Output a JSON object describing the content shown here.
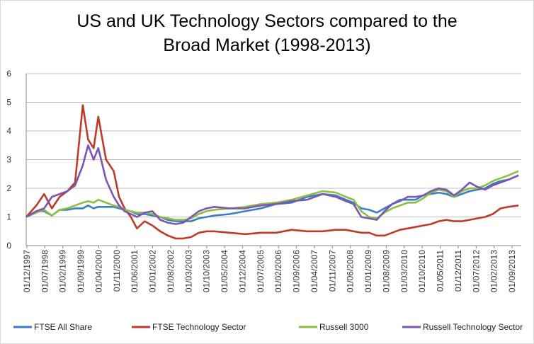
{
  "chart_data": {
    "type": "line",
    "title_line1": "US and UK Technology Sectors compared to the",
    "title_line2": "Broad Market (1998-2013)",
    "xlabel": "",
    "ylabel": "",
    "ylim": [
      0,
      6
    ],
    "yticks": [
      0,
      1,
      2,
      3,
      4,
      5,
      6
    ],
    "grid": true,
    "legend_position": "bottom",
    "x_tick_labels": [
      "01/12/1997",
      "01/07/1998",
      "01/02/1999",
      "01/09/1999",
      "01/04/2000",
      "01/11/2000",
      "01/06/2001",
      "01/01/2002",
      "01/08/2002",
      "01/03/2003",
      "01/10/2003",
      "01/05/2004",
      "01/12/2004",
      "01/07/2005",
      "01/02/2006",
      "01/09/2006",
      "01/04/2007",
      "01/11/2007",
      "01/06/2008",
      "01/01/2009",
      "01/08/2009",
      "01/03/2010",
      "01/10/2010",
      "01/05/2011",
      "01/12/2011",
      "01/07/2012",
      "01/02/2013",
      "01/09/2013"
    ],
    "x": [
      1997.92,
      1998.25,
      1998.5,
      1998.75,
      1999.0,
      1999.25,
      1999.5,
      1999.75,
      1999.92,
      2000.1,
      2000.25,
      2000.5,
      2000.75,
      2000.92,
      2001.1,
      2001.3,
      2001.5,
      2001.75,
      2002.0,
      2002.25,
      2002.5,
      2002.75,
      2003.0,
      2003.25,
      2003.5,
      2003.75,
      2004.0,
      2004.5,
      2005.0,
      2005.5,
      2006.0,
      2006.5,
      2007.0,
      2007.5,
      2007.92,
      2008.25,
      2008.5,
      2008.75,
      2009.0,
      2009.25,
      2009.5,
      2009.75,
      2010.0,
      2010.25,
      2010.5,
      2010.75,
      2011.0,
      2011.25,
      2011.5,
      2011.75,
      2012.0,
      2012.25,
      2012.5,
      2012.75,
      2013.0,
      2013.25,
      2013.5,
      2013.83
    ],
    "series": [
      {
        "name": "FTSE All Share",
        "color": "#3a7dc9",
        "values": [
          1.0,
          1.2,
          1.2,
          1.05,
          1.25,
          1.25,
          1.3,
          1.3,
          1.4,
          1.3,
          1.35,
          1.35,
          1.35,
          1.3,
          1.25,
          1.2,
          1.1,
          1.1,
          1.05,
          1.0,
          0.9,
          0.85,
          0.85,
          0.85,
          0.95,
          1.0,
          1.05,
          1.1,
          1.2,
          1.3,
          1.45,
          1.5,
          1.7,
          1.8,
          1.75,
          1.6,
          1.5,
          1.3,
          1.25,
          1.15,
          1.3,
          1.45,
          1.6,
          1.6,
          1.6,
          1.75,
          1.8,
          1.85,
          1.8,
          1.7,
          1.8,
          1.9,
          1.95,
          2.0,
          2.15,
          2.25,
          2.3,
          2.45
        ]
      },
      {
        "name": "FTSE Technology Sector",
        "color": "#c0392b",
        "values": [
          1.0,
          1.4,
          1.8,
          1.3,
          1.7,
          1.9,
          2.2,
          4.9,
          3.7,
          3.4,
          4.5,
          3.0,
          2.6,
          1.7,
          1.3,
          1.0,
          0.6,
          0.85,
          0.7,
          0.5,
          0.35,
          0.25,
          0.25,
          0.3,
          0.45,
          0.5,
          0.5,
          0.45,
          0.4,
          0.45,
          0.45,
          0.55,
          0.5,
          0.5,
          0.55,
          0.55,
          0.5,
          0.45,
          0.45,
          0.35,
          0.35,
          0.45,
          0.55,
          0.6,
          0.65,
          0.7,
          0.75,
          0.85,
          0.9,
          0.85,
          0.85,
          0.9,
          0.95,
          1.0,
          1.1,
          1.3,
          1.35,
          1.4
        ]
      },
      {
        "name": "Russell 3000",
        "color": "#8cbf3f",
        "values": [
          1.0,
          1.15,
          1.25,
          1.05,
          1.25,
          1.3,
          1.4,
          1.5,
          1.55,
          1.5,
          1.6,
          1.5,
          1.4,
          1.35,
          1.25,
          1.2,
          1.15,
          1.15,
          1.1,
          1.0,
          0.95,
          0.9,
          0.9,
          0.95,
          1.1,
          1.2,
          1.25,
          1.3,
          1.35,
          1.45,
          1.5,
          1.6,
          1.75,
          1.9,
          1.85,
          1.7,
          1.6,
          1.2,
          1.0,
          0.95,
          1.15,
          1.3,
          1.4,
          1.5,
          1.5,
          1.65,
          1.85,
          1.95,
          1.9,
          1.7,
          1.9,
          2.0,
          2.0,
          2.1,
          2.25,
          2.35,
          2.45,
          2.6
        ]
      },
      {
        "name": "Russell Technology Sector",
        "color": "#7d55b2",
        "values": [
          1.0,
          1.2,
          1.3,
          1.7,
          1.8,
          1.9,
          2.1,
          2.8,
          3.5,
          3.0,
          3.4,
          2.3,
          1.7,
          1.4,
          1.2,
          1.1,
          1.0,
          1.15,
          1.2,
          0.9,
          0.8,
          0.75,
          0.8,
          1.0,
          1.2,
          1.3,
          1.35,
          1.3,
          1.3,
          1.4,
          1.45,
          1.55,
          1.6,
          1.8,
          1.7,
          1.55,
          1.45,
          1.0,
          0.95,
          0.9,
          1.2,
          1.45,
          1.55,
          1.7,
          1.7,
          1.75,
          1.9,
          2.0,
          1.95,
          1.75,
          1.95,
          2.2,
          2.05,
          1.95,
          2.1,
          2.2,
          2.3,
          2.45
        ]
      }
    ]
  }
}
